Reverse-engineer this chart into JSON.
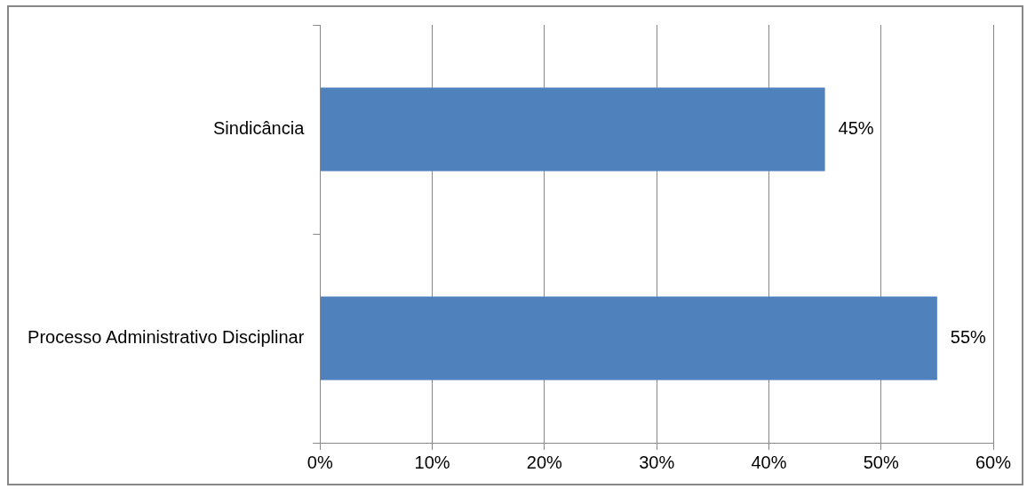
{
  "chart_data": {
    "type": "bar",
    "orientation": "horizontal",
    "categories": [
      "Sindicância",
      "Processo Administrativo Disciplinar"
    ],
    "values": [
      45,
      55
    ],
    "color": "#4f81bd",
    "value_labels": [
      "45%",
      "55%"
    ],
    "xlim": [
      0,
      60
    ],
    "xticks": [
      {
        "value": 0,
        "label": "0%"
      },
      {
        "value": 10,
        "label": "10%"
      },
      {
        "value": 20,
        "label": "20%"
      },
      {
        "value": 30,
        "label": "30%"
      },
      {
        "value": 40,
        "label": "40%"
      },
      {
        "value": 50,
        "label": "50%"
      },
      {
        "value": 60,
        "label": "60%"
      }
    ],
    "grid": "x",
    "legend": false
  }
}
